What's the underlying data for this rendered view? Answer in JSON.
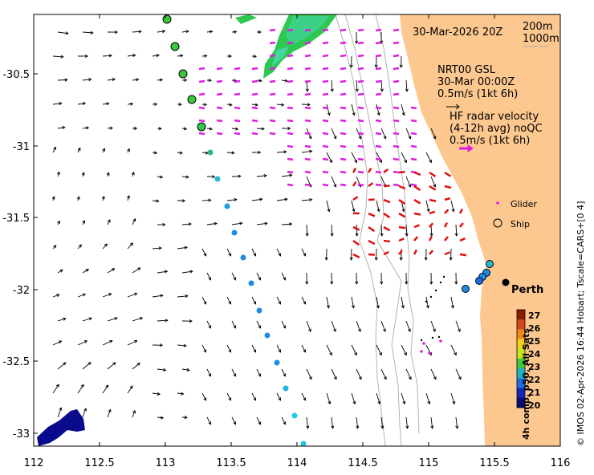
{
  "map": {
    "date_label": "30-Mar-2026 20Z",
    "isobath_labels": [
      "200m",
      "1000m"
    ],
    "model_lines": [
      "NRT00 GSL",
      "30-Mar 00:00Z",
      "0.5m/s (1kt 6h)"
    ],
    "hf_lines": [
      "HF radar velocity",
      "(4-12h avg) noQC",
      "0.5m/s (1kt 6h)"
    ],
    "legend": {
      "glider": "Glider",
      "ship": "Ship"
    },
    "city": "Perth",
    "credit": "© IMOS 02-Apr-2026 16:44 Hobart; Tscale=CARS+[0 4]",
    "colorbar_title": "4h comp, p50, All Sats",
    "colorbar_ticks": [
      "27",
      "26",
      "25",
      "24",
      "23",
      "22",
      "21",
      "20"
    ],
    "colorbar_colors": [
      "#8b1a00",
      "#d2481b",
      "#f08a1e",
      "#f5d21e",
      "#c8e61e",
      "#3cc83c",
      "#1eb4c8",
      "#1e6ee6",
      "#1428b4",
      "#0a0a78"
    ],
    "x_ticks": [
      "112",
      "112.5",
      "113",
      "113.5",
      "114",
      "114.5",
      "115",
      "115.5",
      "116"
    ],
    "y_ticks": [
      "-30.5",
      "-31",
      "-31.5",
      "-32",
      "-32.5",
      "-33"
    ],
    "colors": {
      "land": "#fcc890",
      "hf_vectors": "#e01ce0",
      "hf_red": "#e01010",
      "model_vectors": "#000000"
    }
  }
}
